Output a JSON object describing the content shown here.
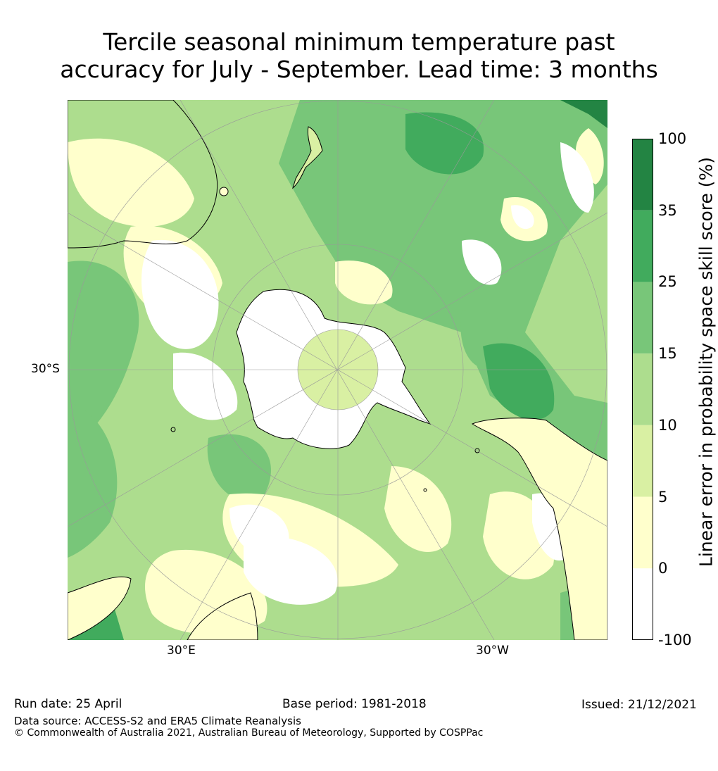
{
  "title": {
    "line1": "Tercile seasonal minimum temperature past",
    "line2": "accuracy for July - September. Lead time: 3 months"
  },
  "map": {
    "labels": {
      "lat_30s": "30°S",
      "lon_30e": "30°E",
      "lon_30w": "30°W"
    },
    "projection": "south polar stereographic",
    "colors": {
      "land_outline": "#000000",
      "graticule": "#999999"
    }
  },
  "colorbar": {
    "label": "Linear error in probability space skill score (%)",
    "ticks": [
      "100",
      "35",
      "25",
      "15",
      "10",
      "5",
      "0",
      "-100"
    ],
    "bins": [
      {
        "from": "35",
        "to": "100",
        "color": "#238443"
      },
      {
        "from": "25",
        "to": "35",
        "color": "#41ab5d"
      },
      {
        "from": "15",
        "to": "25",
        "color": "#78c679"
      },
      {
        "from": "10",
        "to": "15",
        "color": "#addd8e"
      },
      {
        "from": "5",
        "to": "10",
        "color": "#d9f0a3"
      },
      {
        "from": "0",
        "to": "5",
        "color": "#ffffcc"
      },
      {
        "from": "-100",
        "to": "0",
        "color": "#ffffff"
      }
    ]
  },
  "footer": {
    "run_date": "Run date: 25 April",
    "base_period": "Base period: 1981-2018",
    "issued": "Issued: 21/12/2021",
    "data_source": "Data source: ACCESS-S2 and ERA5 Climate Reanalysis",
    "copyright": "© Commonwealth of Australia 2021, Australian Bureau of Meteorology, Supported by COSPPac"
  }
}
